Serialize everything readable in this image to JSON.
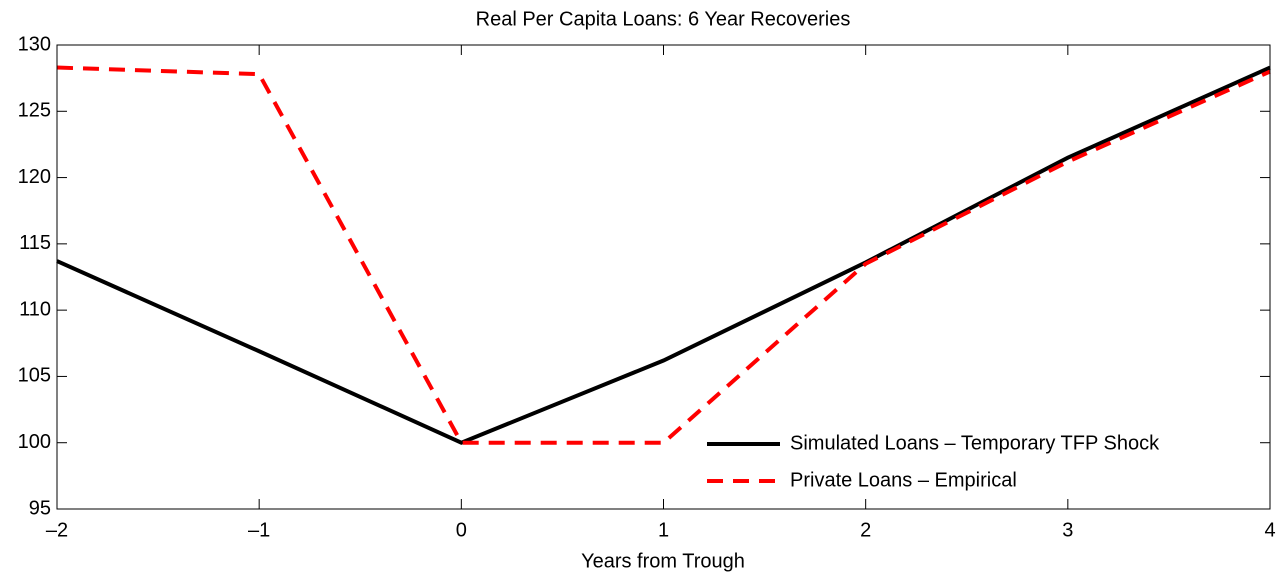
{
  "chart_data": {
    "type": "line",
    "title": "Real Per Capita Loans: 6 Year Recoveries",
    "x_label": "Years from Trough",
    "x": [
      -2,
      -1,
      0,
      1,
      2,
      3,
      4
    ],
    "series": [
      {
        "name": "Simulated Loans – Temporary TFP Shock",
        "color": "#000000",
        "line_style": "solid",
        "values": [
          113.7,
          106.9,
          100,
          106.2,
          113.6,
          121.5,
          128.3
        ]
      },
      {
        "name": "Private Loans – Empirical",
        "color": "#ff0000",
        "line_style": "dashed",
        "values": [
          128.3,
          127.8,
          100,
          100,
          113.5,
          121.2,
          128.0
        ]
      }
    ],
    "xlim": [
      -2,
      4
    ],
    "xticks": [
      {
        "value": -2,
        "label": "–2"
      },
      {
        "value": -1,
        "label": "–1"
      },
      0,
      1,
      2,
      3,
      4
    ],
    "ylim": [
      95,
      130
    ],
    "yticks": [
      95,
      100,
      105,
      110,
      115,
      120,
      125,
      130
    ],
    "grid": false,
    "legend": "lower right"
  }
}
